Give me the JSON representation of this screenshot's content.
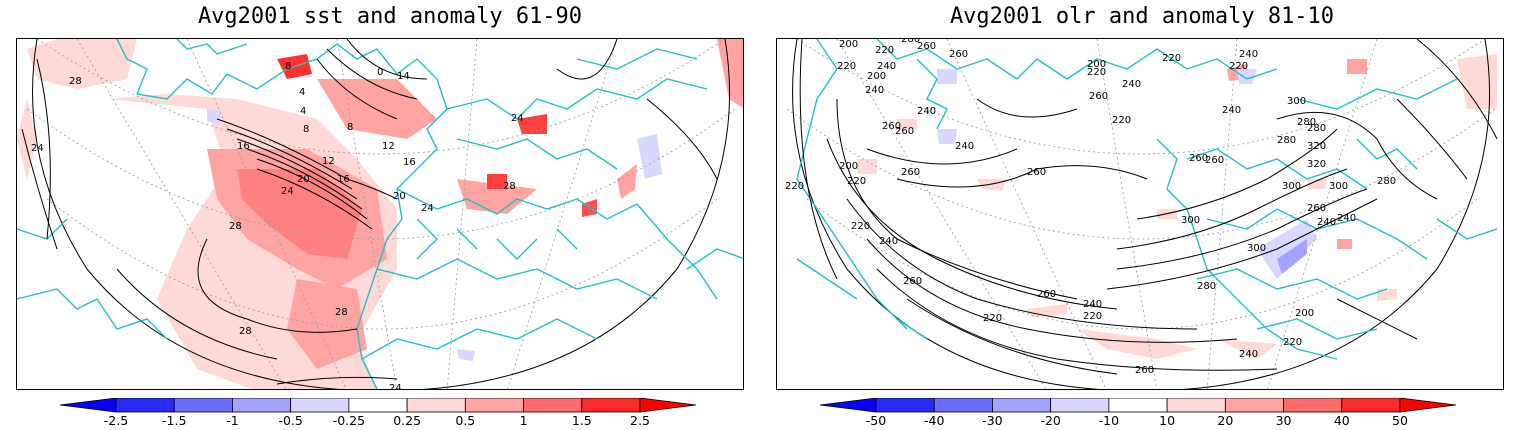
{
  "left_panel": {
    "title": "Avg2001 sst and anomaly 61-90",
    "contour_labels": [
      "8",
      "4",
      "0",
      "14",
      "4",
      "8",
      "8",
      "12",
      "16",
      "12",
      "20",
      "24",
      "16",
      "16",
      "20",
      "28",
      "24",
      "24",
      "28",
      "28",
      "28",
      "24",
      "28",
      "24"
    ],
    "colorbar": {
      "ticks": [
        "-2.5",
        "-1.5",
        "-1",
        "-0.5",
        "-0.25",
        "0.25",
        "0.5",
        "1",
        "1.5",
        "2.5"
      ],
      "colors": [
        "#0a00ff",
        "#2a2aff",
        "#6b6bff",
        "#a3a3ff",
        "#d8d8ff",
        "#ffffff",
        "#ffd8d8",
        "#ffa3a3",
        "#ff6b6b",
        "#ff2a2a",
        "#ff0000"
      ]
    }
  },
  "right_panel": {
    "title": "Avg2001 olr and anomaly 81-10",
    "contour_labels": [
      "200",
      "220",
      "260",
      "260",
      "280",
      "220",
      "240",
      "200",
      "240",
      "200",
      "220",
      "220",
      "220",
      "240",
      "260",
      "260",
      "240",
      "240",
      "240",
      "260",
      "220",
      "260",
      "200",
      "220",
      "240",
      "220",
      "240",
      "260",
      "220",
      "260",
      "300",
      "280",
      "280",
      "300",
      "320",
      "320",
      "260",
      "300",
      "300",
      "280",
      "260",
      "240",
      "220",
      "200",
      "240",
      "220",
      "260",
      "260",
      "280",
      "300",
      "240",
      "280",
      "260",
      "240",
      "220"
    ],
    "colorbar": {
      "ticks": [
        "-50",
        "-40",
        "-30",
        "-20",
        "-10",
        "10",
        "20",
        "30",
        "40",
        "50"
      ],
      "colors": [
        "#0a00ff",
        "#2a2aff",
        "#6b6bff",
        "#a3a3ff",
        "#d8d8ff",
        "#ffffff",
        "#ffd8d8",
        "#ffa3a3",
        "#ff6b6b",
        "#ff2a2a",
        "#ff0000"
      ]
    }
  },
  "colors": {
    "coastline": "#22c0c0",
    "contour": "#000000",
    "gridline": "#9a9a9a"
  }
}
